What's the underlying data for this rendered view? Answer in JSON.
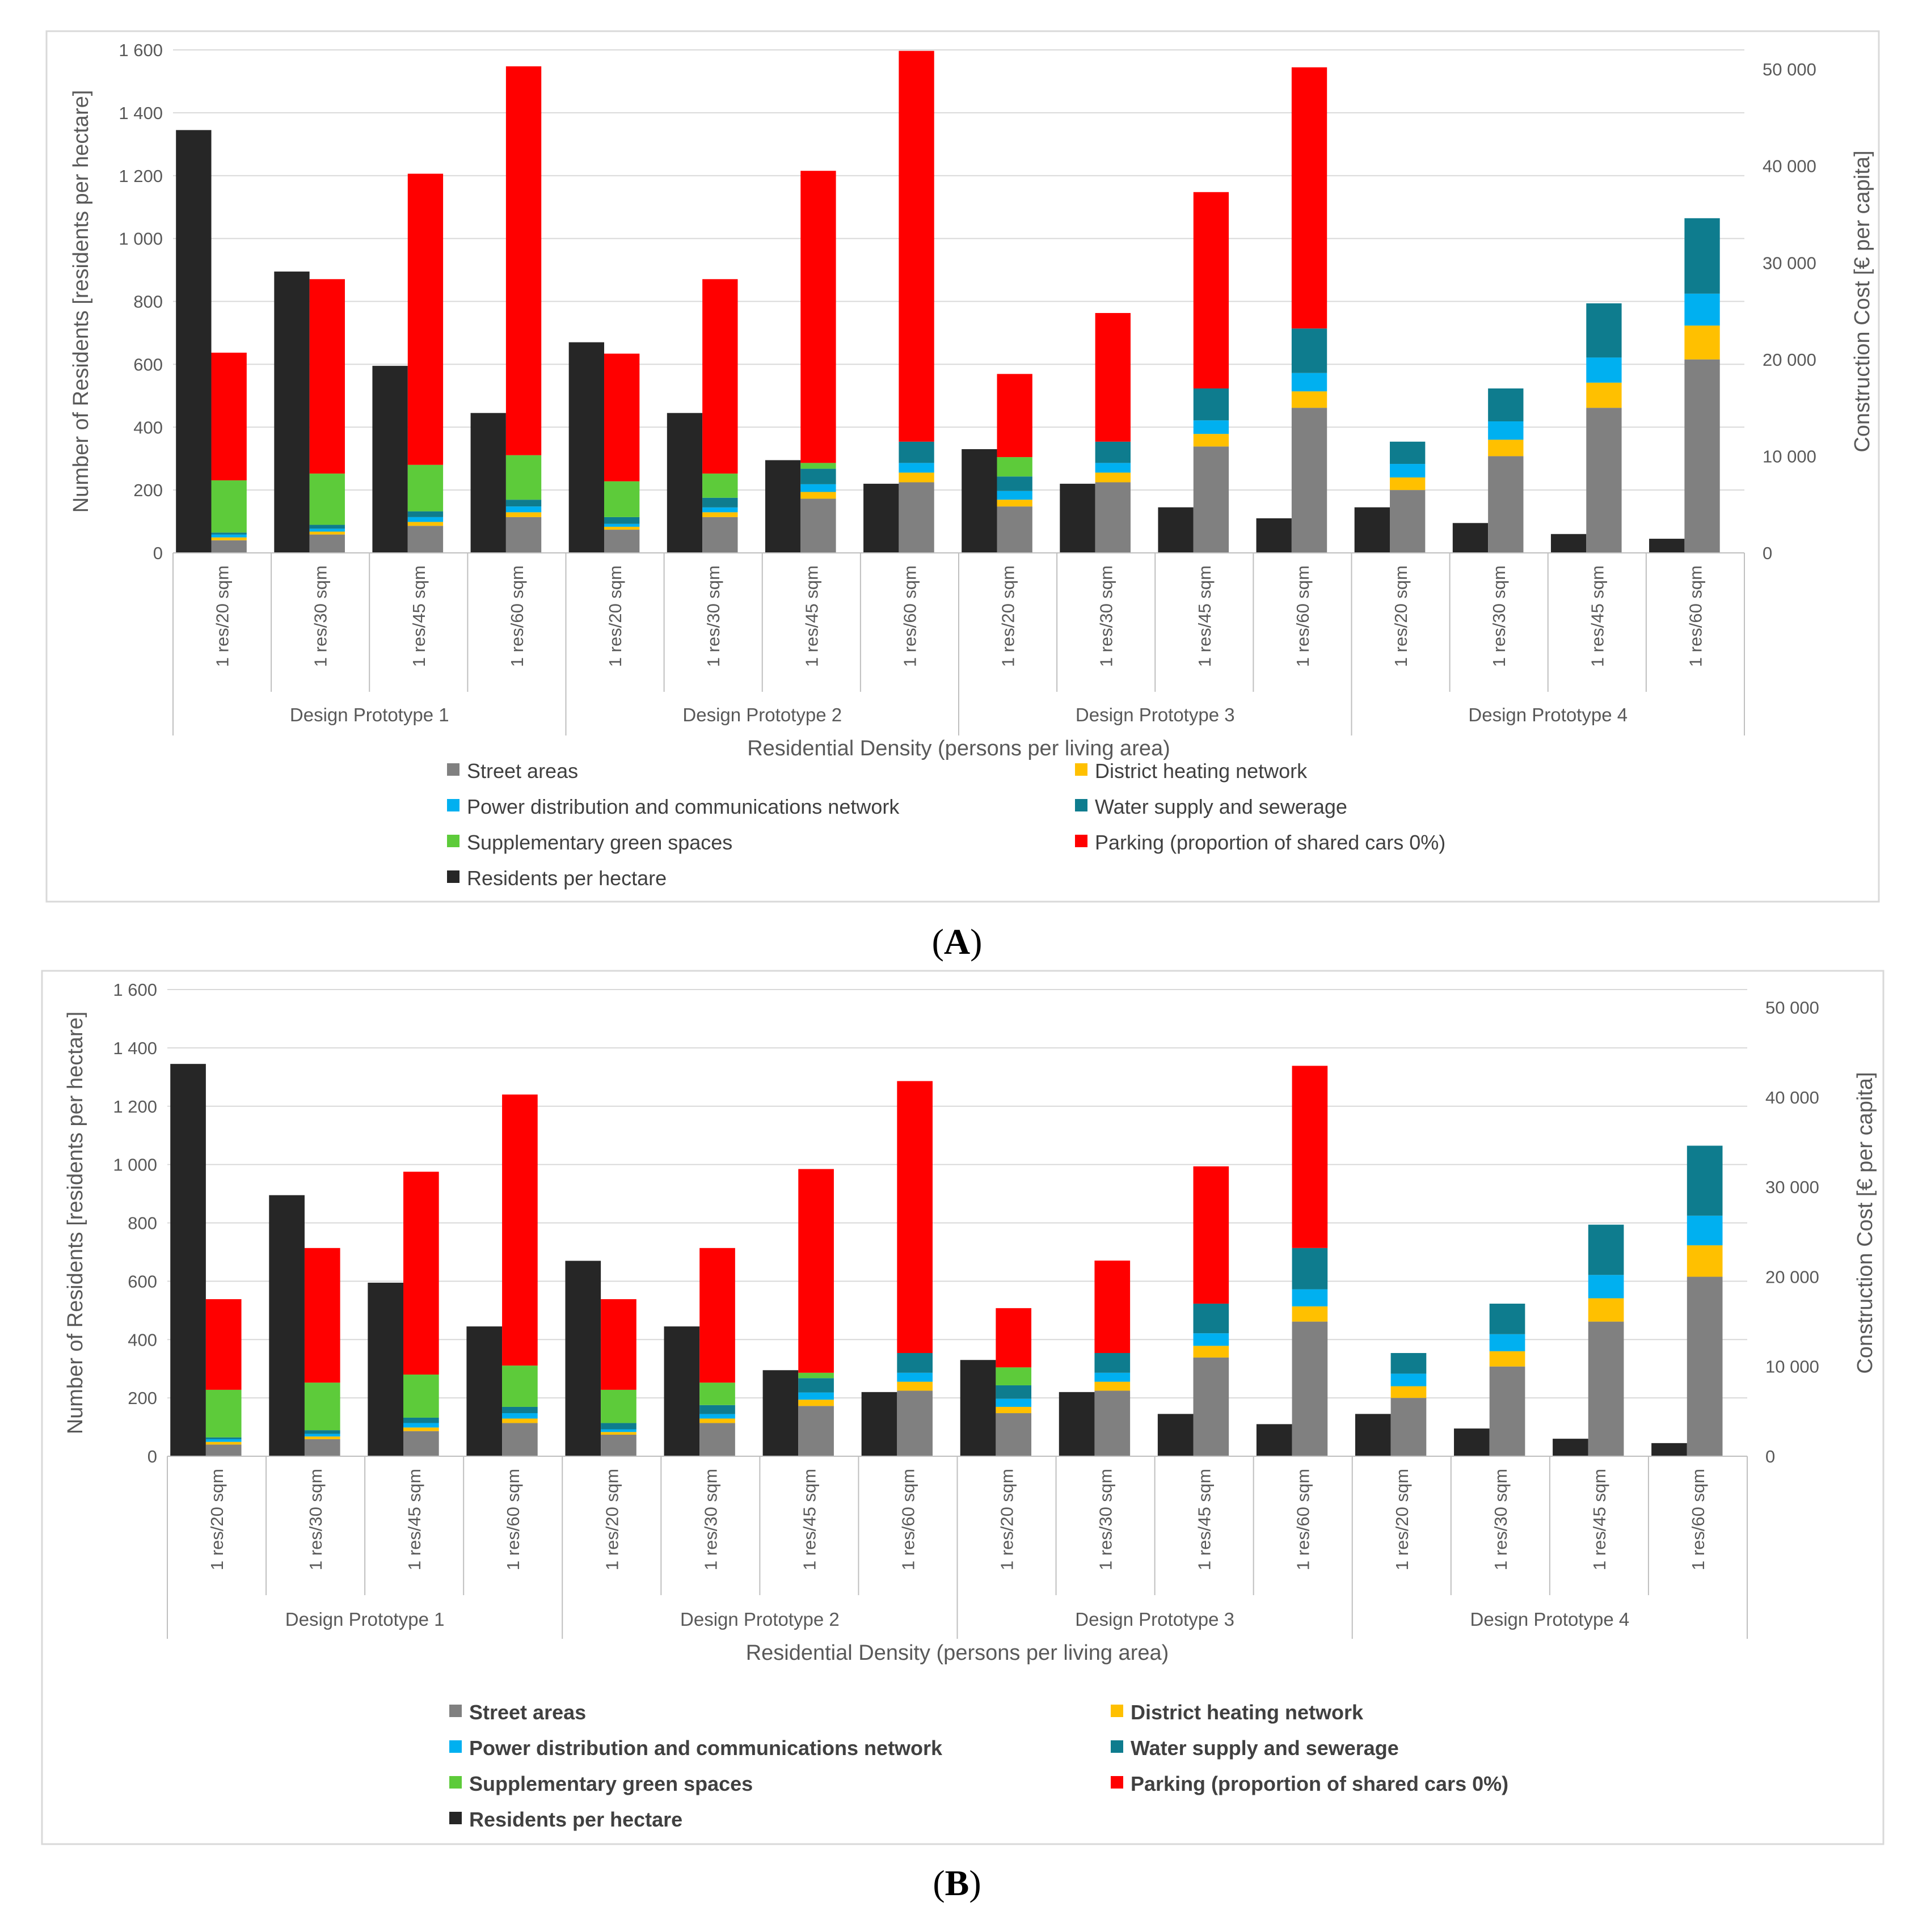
{
  "captions": [
    "(A)",
    "(B)"
  ],
  "colors": {
    "street": "#808080",
    "heating": "#FFC000",
    "power": "#00B0F0",
    "water": "#0E7C8E",
    "green": "#5DCB3A",
    "parking": "#FF0000",
    "residents": "#262626",
    "grid": "#D9D9D9",
    "axis": "#BFBFBF",
    "text": "#595959"
  },
  "chart_data": [
    {
      "panel": "A",
      "type": "bar",
      "yaxis_left": {
        "label": "Number of Residents [residents per hectare]",
        "lim": [
          0,
          1600
        ],
        "ticks": [
          0,
          200,
          400,
          600,
          800,
          1000,
          1200,
          1400,
          1600
        ],
        "tick_labels": [
          "0",
          "200",
          "400",
          "600",
          "800",
          "1 000",
          "1 200",
          "1 400",
          "1 600"
        ]
      },
      "yaxis_right": {
        "label": "Construction Cost [€ per capita]",
        "lim": [
          0,
          52000
        ],
        "ticks": [
          0,
          10000,
          20000,
          30000,
          40000,
          50000
        ],
        "tick_labels": [
          "0",
          "10 000",
          "20 000",
          "30 000",
          "40 000",
          "50 000"
        ]
      },
      "xlabel": "Residential Density (persons per living area)",
      "groups": [
        "Design Prototype 1",
        "Design Prototype 2",
        "Design Prototype 3",
        "Design Prototype 4"
      ],
      "categories": [
        "1 res/20 sqm",
        "1 res/30 sqm",
        "1 res/45 sqm",
        "1 res/60 sqm"
      ],
      "legend": [
        "Street areas",
        "District heating network",
        "Power distribution  and communications network",
        "Water supply and sewerage",
        "Supplementary green spaces",
        "Parking (proportion of shared cars 0%)",
        "Residents per hectare"
      ],
      "residents_per_hectare": [
        1345,
        895,
        595,
        445,
        670,
        445,
        295,
        220,
        330,
        220,
        145,
        110,
        145,
        95,
        60,
        45
      ],
      "cost_series": [
        {
          "name": "Street areas",
          "key": "street",
          "values": [
            1300,
            1900,
            2800,
            3700,
            2400,
            3700,
            5600,
            7300,
            4800,
            7300,
            11000,
            15000,
            6500,
            10000,
            15000,
            20000
          ]
        },
        {
          "name": "District heating network",
          "key": "heating",
          "values": [
            300,
            300,
            400,
            500,
            300,
            500,
            700,
            1000,
            700,
            1000,
            1300,
            1700,
            1300,
            1700,
            2600,
            3500
          ]
        },
        {
          "name": "Power distribution  and communications network",
          "key": "power",
          "values": [
            300,
            300,
            500,
            600,
            300,
            500,
            800,
            1000,
            900,
            1000,
            1400,
            1900,
            1400,
            1900,
            2600,
            3300
          ]
        },
        {
          "name": "Water supply and sewerage",
          "key": "water",
          "values": [
            200,
            400,
            600,
            700,
            700,
            1000,
            1600,
            2200,
            1500,
            2200,
            3300,
            4600,
            2300,
            3400,
            5600,
            7800
          ]
        },
        {
          "name": "Supplementary green spaces",
          "key": "green",
          "values": [
            5400,
            5300,
            4800,
            4600,
            3700,
            2500,
            600,
            0,
            2000,
            0,
            0,
            0,
            0,
            0,
            0,
            0
          ]
        },
        {
          "name": "Parking (proportion of shared cars 0%)",
          "key": "parking",
          "values": [
            13200,
            20100,
            30100,
            40200,
            13200,
            20100,
            30200,
            40400,
            8600,
            13300,
            20300,
            27000,
            0,
            0,
            0,
            0
          ]
        }
      ]
    },
    {
      "panel": "B",
      "type": "bar",
      "yaxis_left": {
        "label": "Number of Residents [residents per hectare]",
        "lim": [
          0,
          1600
        ],
        "ticks": [
          0,
          200,
          400,
          600,
          800,
          1000,
          1200,
          1400,
          1600
        ],
        "tick_labels": [
          "0",
          "200",
          "400",
          "600",
          "800",
          "1 000",
          "1 200",
          "1 400",
          "1 600"
        ]
      },
      "yaxis_right": {
        "label": "Construction Cost [€ per capita]",
        "lim": [
          0,
          52000
        ],
        "ticks": [
          0,
          10000,
          20000,
          30000,
          40000,
          50000
        ],
        "tick_labels": [
          "0",
          "10 000",
          "20 000",
          "30 000",
          "40 000",
          "50 000"
        ]
      },
      "xlabel": "Residential Density (persons per living area)",
      "groups": [
        "Design Prototype 1",
        "Design Prototype 2",
        "Design Prototype 3",
        "Design Prototype 4"
      ],
      "categories": [
        "1 res/20 sqm",
        "1 res/30 sqm",
        "1 res/45 sqm",
        "1 res/60 sqm"
      ],
      "legend": [
        "Street areas",
        "District heating network",
        "Power distribution  and communications network",
        "Water supply and sewerage",
        "Supplementary green spaces",
        "Parking (proportion of shared cars 0%)",
        "Residents per hectare"
      ],
      "residents_per_hectare": [
        1345,
        895,
        595,
        445,
        670,
        445,
        295,
        220,
        330,
        220,
        145,
        110,
        145,
        95,
        60,
        45
      ],
      "cost_series": [
        {
          "name": "Street areas",
          "key": "street",
          "values": [
            1300,
            1900,
            2800,
            3700,
            2400,
            3700,
            5600,
            7300,
            4800,
            7300,
            11000,
            15000,
            6500,
            10000,
            15000,
            20000
          ]
        },
        {
          "name": "District heating network",
          "key": "heating",
          "values": [
            300,
            300,
            400,
            500,
            300,
            500,
            700,
            1000,
            700,
            1000,
            1300,
            1700,
            1300,
            1700,
            2600,
            3500
          ]
        },
        {
          "name": "Power distribution  and communications network",
          "key": "power",
          "values": [
            300,
            300,
            500,
            600,
            300,
            500,
            800,
            1000,
            900,
            1000,
            1400,
            1900,
            1400,
            1900,
            2600,
            3300
          ]
        },
        {
          "name": "Water supply and sewerage",
          "key": "water",
          "values": [
            200,
            400,
            600,
            700,
            700,
            1000,
            1600,
            2200,
            1500,
            2200,
            3300,
            4600,
            2300,
            3400,
            5600,
            7800
          ]
        },
        {
          "name": "Supplementary green spaces",
          "key": "green",
          "values": [
            5300,
            5300,
            4800,
            4600,
            3700,
            2500,
            600,
            0,
            2000,
            0,
            0,
            0,
            0,
            0,
            0,
            0
          ]
        },
        {
          "name": "Parking (proportion of shared cars 0%)",
          "key": "parking",
          "values": [
            10100,
            15000,
            22600,
            30200,
            10100,
            15000,
            22700,
            30300,
            6600,
            10300,
            15300,
            20300,
            0,
            0,
            0,
            0
          ]
        }
      ]
    }
  ]
}
